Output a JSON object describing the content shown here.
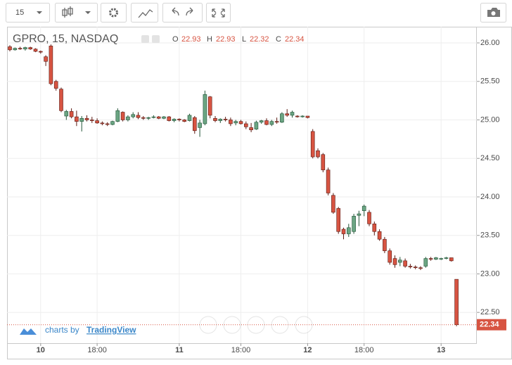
{
  "chart_data": {
    "type": "candlestick",
    "symbol": "GPRO, 15, NASDAQ",
    "interval": "15",
    "open_label": "O",
    "high_label": "H",
    "low_label": "L",
    "close_label": "C",
    "brand_prefix": "charts by",
    "brand": "TradingView",
    "categories": [
      null,
      null,
      null,
      null,
      null,
      null,
      "10",
      null,
      null,
      null,
      null,
      null,
      null,
      null,
      null,
      null,
      null,
      "18:00",
      null,
      null,
      null,
      null,
      null,
      null,
      null,
      null,
      null,
      null,
      null,
      null,
      null,
      null,
      null,
      "11",
      null,
      null,
      null,
      null,
      null,
      null,
      null,
      null,
      null,
      null,
      null,
      "18:00",
      null,
      null,
      null,
      null,
      null,
      null,
      null,
      null,
      null,
      null,
      null,
      null,
      "12",
      null,
      null,
      null,
      null,
      null,
      null,
      null,
      null,
      null,
      null,
      "18:00",
      null,
      null,
      null,
      null,
      null,
      null,
      null,
      null,
      null,
      null,
      null,
      null,
      null,
      null,
      "13",
      null,
      null,
      null
    ],
    "open": [
      25.95,
      25.91,
      25.93,
      25.92,
      25.94,
      25.92,
      25.89,
      25.82,
      25.96,
      25.5,
      25.4,
      25.05,
      25.11,
      25.04,
      24.98,
      25.02,
      25,
      24.99,
      24.96,
      24.95,
      24.94,
      24.98,
      25.1,
      25,
      25.04,
      25.06,
      25.03,
      25.02,
      25.03,
      25.04,
      25.02,
      25.04,
      24.99,
      25.01,
      25,
      24.99,
      25.03,
      24.9,
      24.95,
      25.3,
      25.02,
      24.99,
      25.01,
      25,
      24.96,
      24.98,
      24.95,
      24.9,
      24.88,
      24.97,
      24.99,
      24.94,
      24.98,
      24.97,
      25.08,
      25.06,
      25.05,
      25.04,
      25.05,
      24.85,
      24.6,
      24.55,
      24.35,
      24.02,
      23.85,
      23.58,
      23.52,
      23.55,
      23.76,
      23.82,
      23.8,
      23.65,
      23.55,
      23.45,
      23.3,
      23.2,
      23.15,
      23.17,
      23.1,
      23.09,
      23.08,
      23.1,
      23.2,
      23.19,
      23.2,
      23.2,
      23.21,
      22.93
    ],
    "high": [
      25.97,
      25.94,
      25.95,
      25.95,
      25.95,
      25.93,
      25.9,
      25.84,
      25.98,
      25.52,
      25.42,
      25.13,
      25.15,
      25.12,
      25.05,
      25.06,
      25.04,
      25.02,
      24.98,
      24.97,
      24.99,
      25.15,
      25.11,
      25.06,
      25.1,
      25.1,
      25.05,
      25.04,
      25.06,
      25.05,
      25.05,
      25.05,
      25.02,
      25.02,
      25.01,
      25.08,
      25.05,
      25,
      25.38,
      25.31,
      25.05,
      25.02,
      25.04,
      25.03,
      25,
      25,
      24.98,
      24.96,
      24.99,
      25,
      25.02,
      25,
      25.03,
      25.1,
      25.14,
      25.12,
      25.06,
      25.06,
      25.05,
      24.88,
      24.63,
      24.57,
      24.38,
      24.05,
      23.87,
      23.6,
      23.65,
      23.78,
      23.82,
      23.9,
      23.83,
      23.68,
      23.58,
      23.48,
      23.33,
      23.24,
      23.22,
      23.2,
      23.13,
      23.11,
      23.1,
      23.22,
      23.22,
      23.22,
      23.21,
      23.22,
      23.21,
      22.93
    ],
    "low": [
      25.89,
      25.9,
      25.91,
      25.9,
      25.91,
      25.88,
      25.86,
      25.7,
      25.45,
      25.38,
      25.1,
      25,
      25.02,
      24.92,
      24.85,
      24.98,
      24.96,
      24.95,
      24.93,
      24.92,
      24.93,
      24.97,
      24.98,
      24.98,
      25.02,
      25.01,
      25,
      25,
      25.02,
      25.01,
      25.01,
      24.98,
      24.97,
      24.98,
      24.97,
      24.98,
      24.82,
      24.78,
      24.93,
      25.02,
      24.97,
      24.96,
      24.98,
      24.92,
      24.93,
      24.94,
      24.88,
      24.84,
      24.87,
      24.95,
      24.93,
      24.92,
      24.95,
      24.96,
      25.04,
      25.03,
      25.03,
      25.03,
      25.02,
      24.5,
      24.5,
      24.32,
      24.02,
      23.78,
      23.52,
      23.45,
      23.48,
      23.52,
      23.62,
      23.75,
      23.62,
      23.5,
      23.43,
      23.27,
      23.12,
      23.08,
      23.1,
      23.08,
      23.07,
      23.06,
      23.05,
      23.08,
      23.17,
      23.18,
      23.18,
      23.19,
      23.16,
      22.32
    ],
    "close": [
      25.91,
      25.93,
      25.92,
      25.94,
      25.92,
      25.89,
      25.88,
      25.76,
      25.47,
      25.41,
      25.12,
      25.11,
      25.04,
      24.98,
      25.02,
      25,
      24.99,
      24.96,
      24.95,
      24.94,
      24.98,
      25.12,
      25,
      25.04,
      25.07,
      25.03,
      25.02,
      25.03,
      25.04,
      25.02,
      25.04,
      24.99,
      25.01,
      25,
      24.98,
      25.06,
      24.86,
      24.96,
      25.33,
      25.06,
      24.99,
      25.01,
      25,
      24.95,
      24.98,
      24.95,
      24.91,
      24.87,
      24.97,
      24.99,
      24.94,
      24.98,
      24.97,
      25.08,
      25.06,
      25.1,
      25.04,
      25.05,
      25.03,
      24.52,
      24.52,
      24.35,
      24.05,
      23.8,
      23.55,
      23.52,
      23.6,
      23.75,
      23.78,
      23.88,
      23.65,
      23.55,
      23.45,
      23.3,
      23.15,
      23.12,
      23.18,
      23.1,
      23.09,
      23.08,
      23.07,
      23.2,
      23.19,
      23.21,
      23.2,
      23.21,
      23.17,
      22.34
    ],
    "up_color": "#6ba583",
    "down_color": "#d75442",
    "ylim": [
      22.1,
      26.21
    ],
    "yticks": [
      {
        "value": 22.5,
        "label": "22.50"
      },
      {
        "value": 23,
        "label": "23.00"
      },
      {
        "value": 23.5,
        "label": "23.50"
      },
      {
        "value": 24,
        "label": "24.00"
      },
      {
        "value": 24.5,
        "label": "24.50"
      },
      {
        "value": 25,
        "label": "25.00"
      },
      {
        "value": 25.5,
        "label": "25.50"
      },
      {
        "value": 26,
        "label": "26.00"
      }
    ],
    "grid": true
  }
}
